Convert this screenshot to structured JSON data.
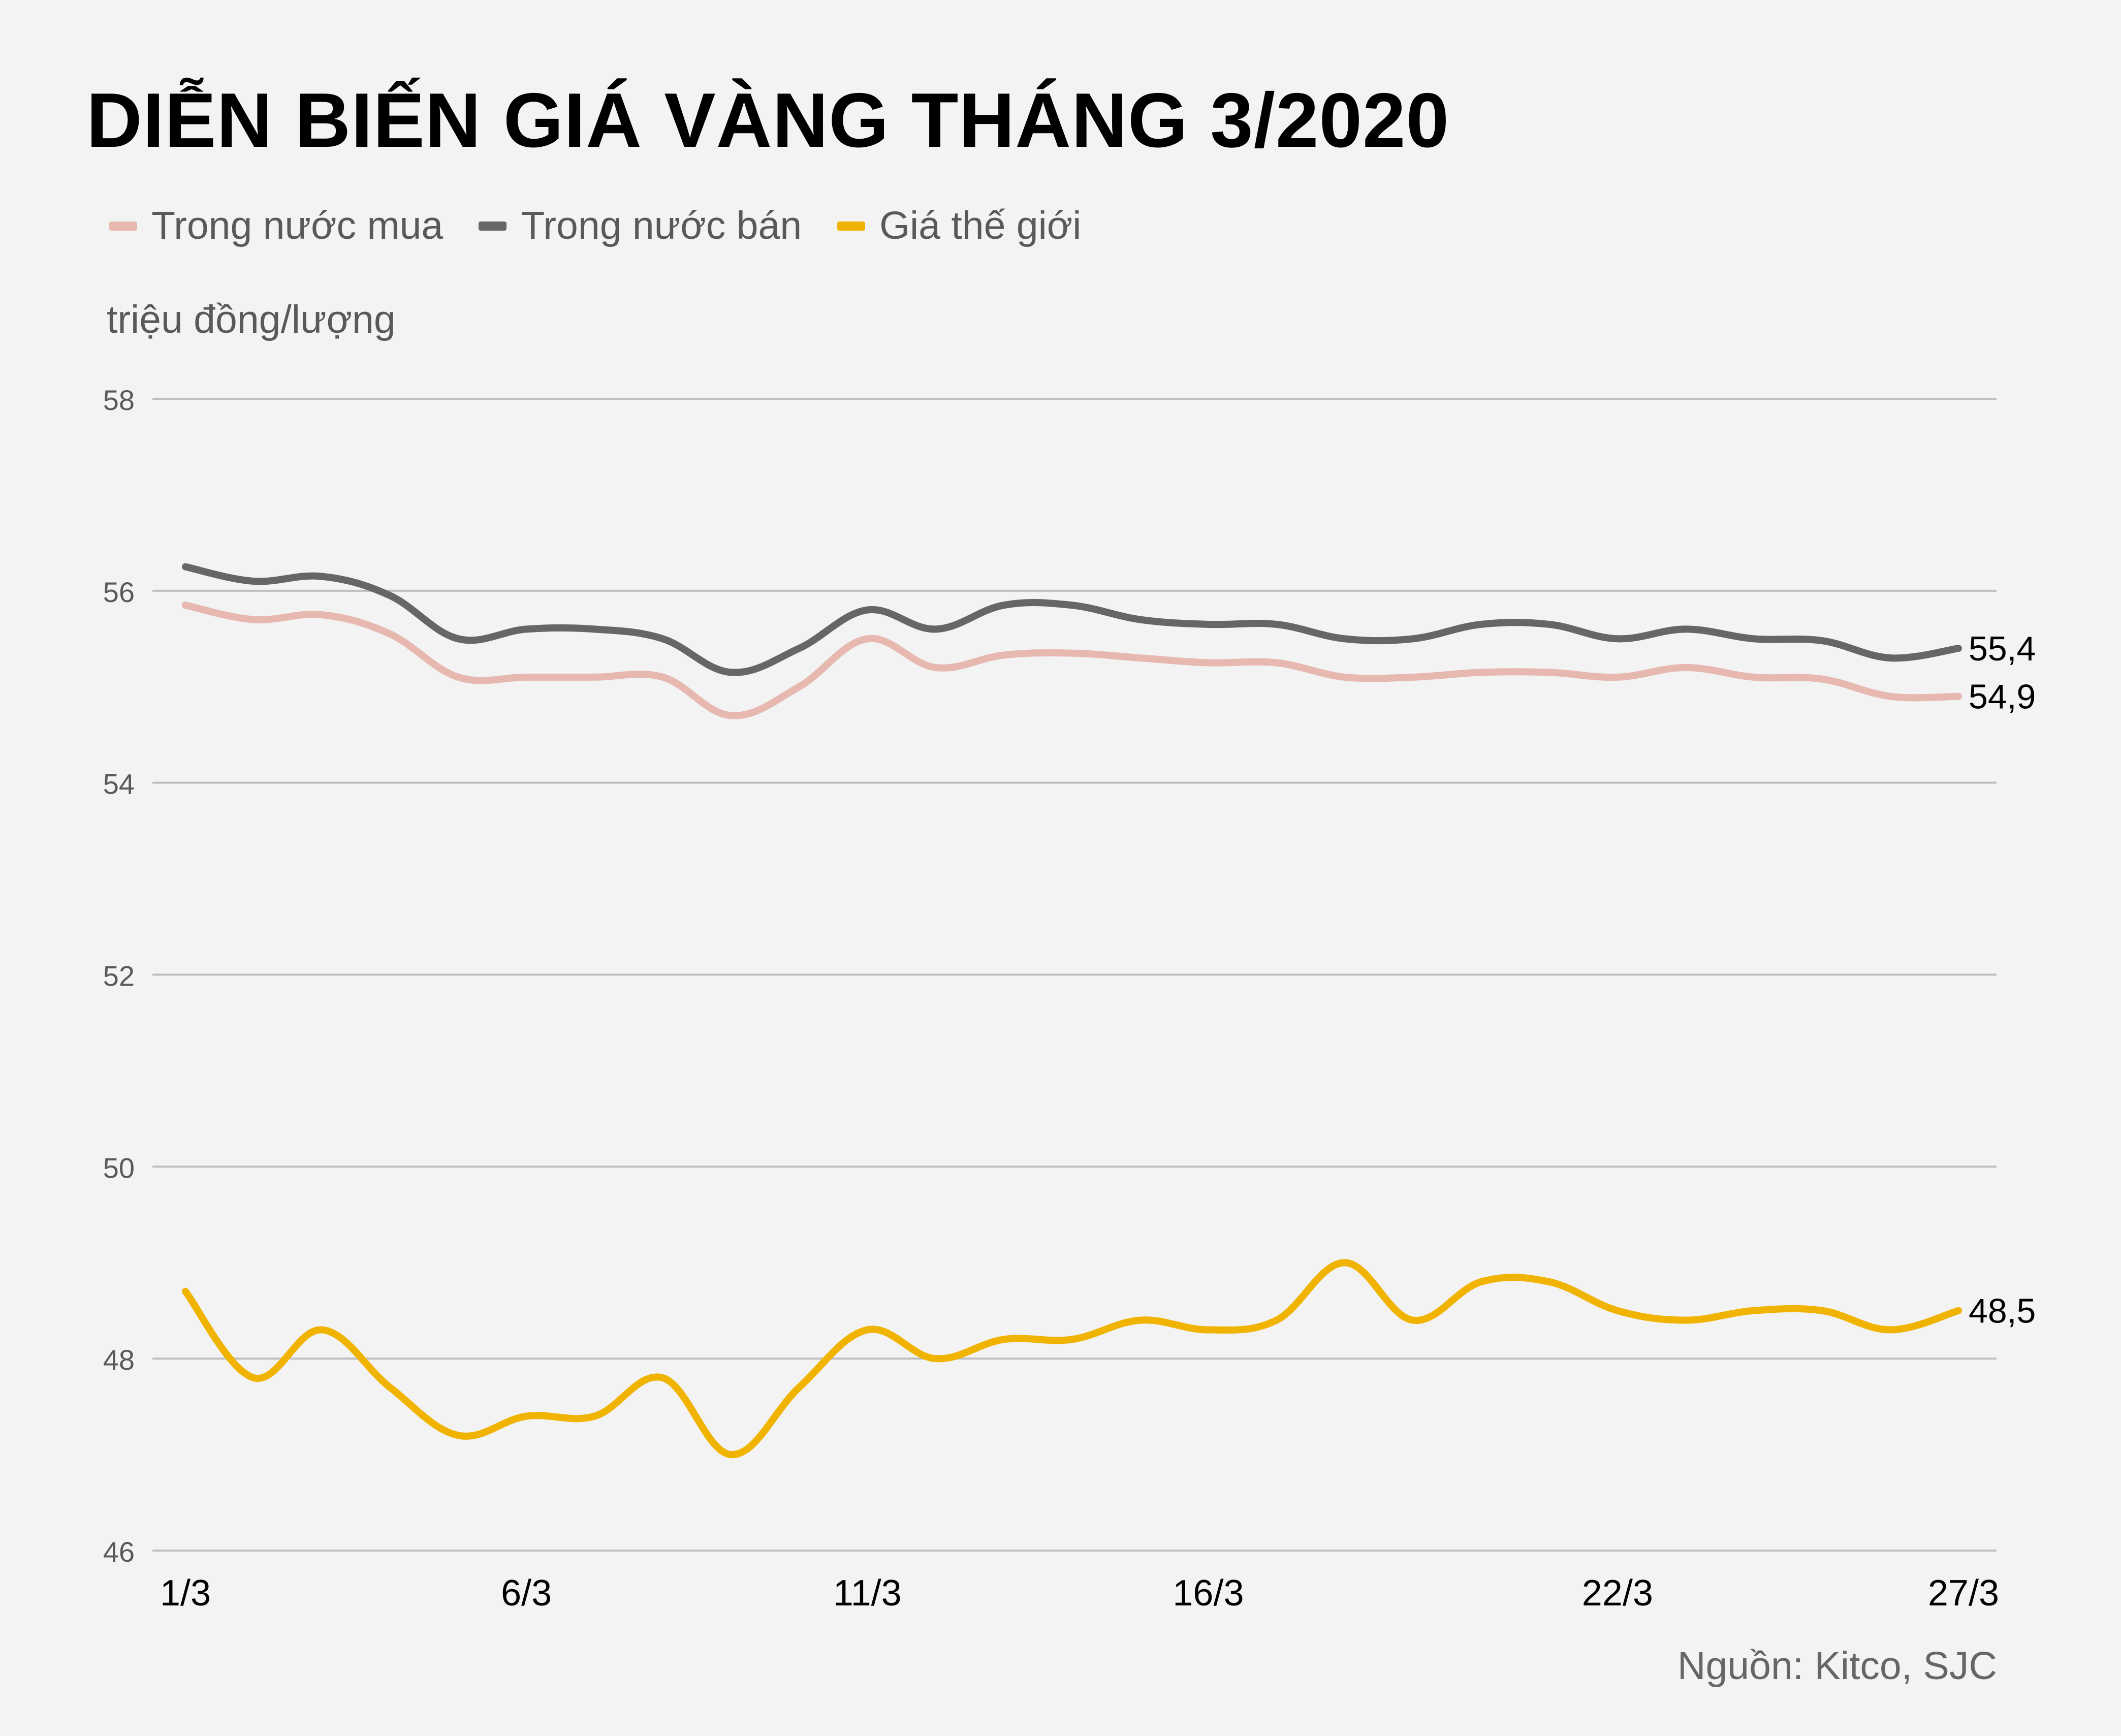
{
  "title": "DIỄN BIẾN GIÁ VÀNG THÁNG 3/2020",
  "unit_label": "triệu đồng/lượng",
  "source": "Nguồn: Kitco, SJC",
  "chart_data": {
    "type": "line",
    "title": "DIỄN BIẾN GIÁ VÀNG THÁNG 3/2020",
    "ylabel": "triệu đồng/lượng",
    "xlabel": "",
    "ylim": [
      46,
      58
    ],
    "yticks": [
      46,
      48,
      50,
      52,
      54,
      56,
      58
    ],
    "xtick_labels": [
      "1/3",
      "6/3",
      "11/3",
      "16/3",
      "22/3",
      "27/3"
    ],
    "grid": true,
    "legend_position": "top-left",
    "series": [
      {
        "name": "Trong nước mua",
        "color": "#e6b8b0",
        "end_label": "54,9",
        "values": [
          55.85,
          55.7,
          55.75,
          55.55,
          55.1,
          55.1,
          55.1,
          55.1,
          54.7,
          55.0,
          55.5,
          55.2,
          55.33,
          55.35,
          55.3,
          55.25,
          55.25,
          55.1,
          55.1,
          55.15,
          55.15,
          55.1,
          55.2,
          55.1,
          55.08,
          54.9,
          54.9
        ]
      },
      {
        "name": "Trong nước bán",
        "color": "#666666",
        "end_label": "55,4",
        "values": [
          56.25,
          56.1,
          56.15,
          55.95,
          55.5,
          55.6,
          55.6,
          55.5,
          55.15,
          55.4,
          55.8,
          55.6,
          55.85,
          55.85,
          55.7,
          55.65,
          55.65,
          55.5,
          55.5,
          55.65,
          55.65,
          55.5,
          55.6,
          55.5,
          55.48,
          55.3,
          55.4
        ]
      },
      {
        "name": "Giá thế giới",
        "color": "#f0b400",
        "end_label": "48,5",
        "values": [
          48.7,
          47.8,
          48.3,
          47.7,
          47.2,
          47.4,
          47.4,
          47.8,
          47.0,
          47.7,
          48.3,
          48.0,
          48.2,
          48.2,
          48.4,
          48.3,
          48.4,
          49.0,
          48.4,
          48.8,
          48.8,
          48.5,
          48.4,
          48.5,
          48.5,
          48.3,
          48.5
        ]
      }
    ]
  }
}
